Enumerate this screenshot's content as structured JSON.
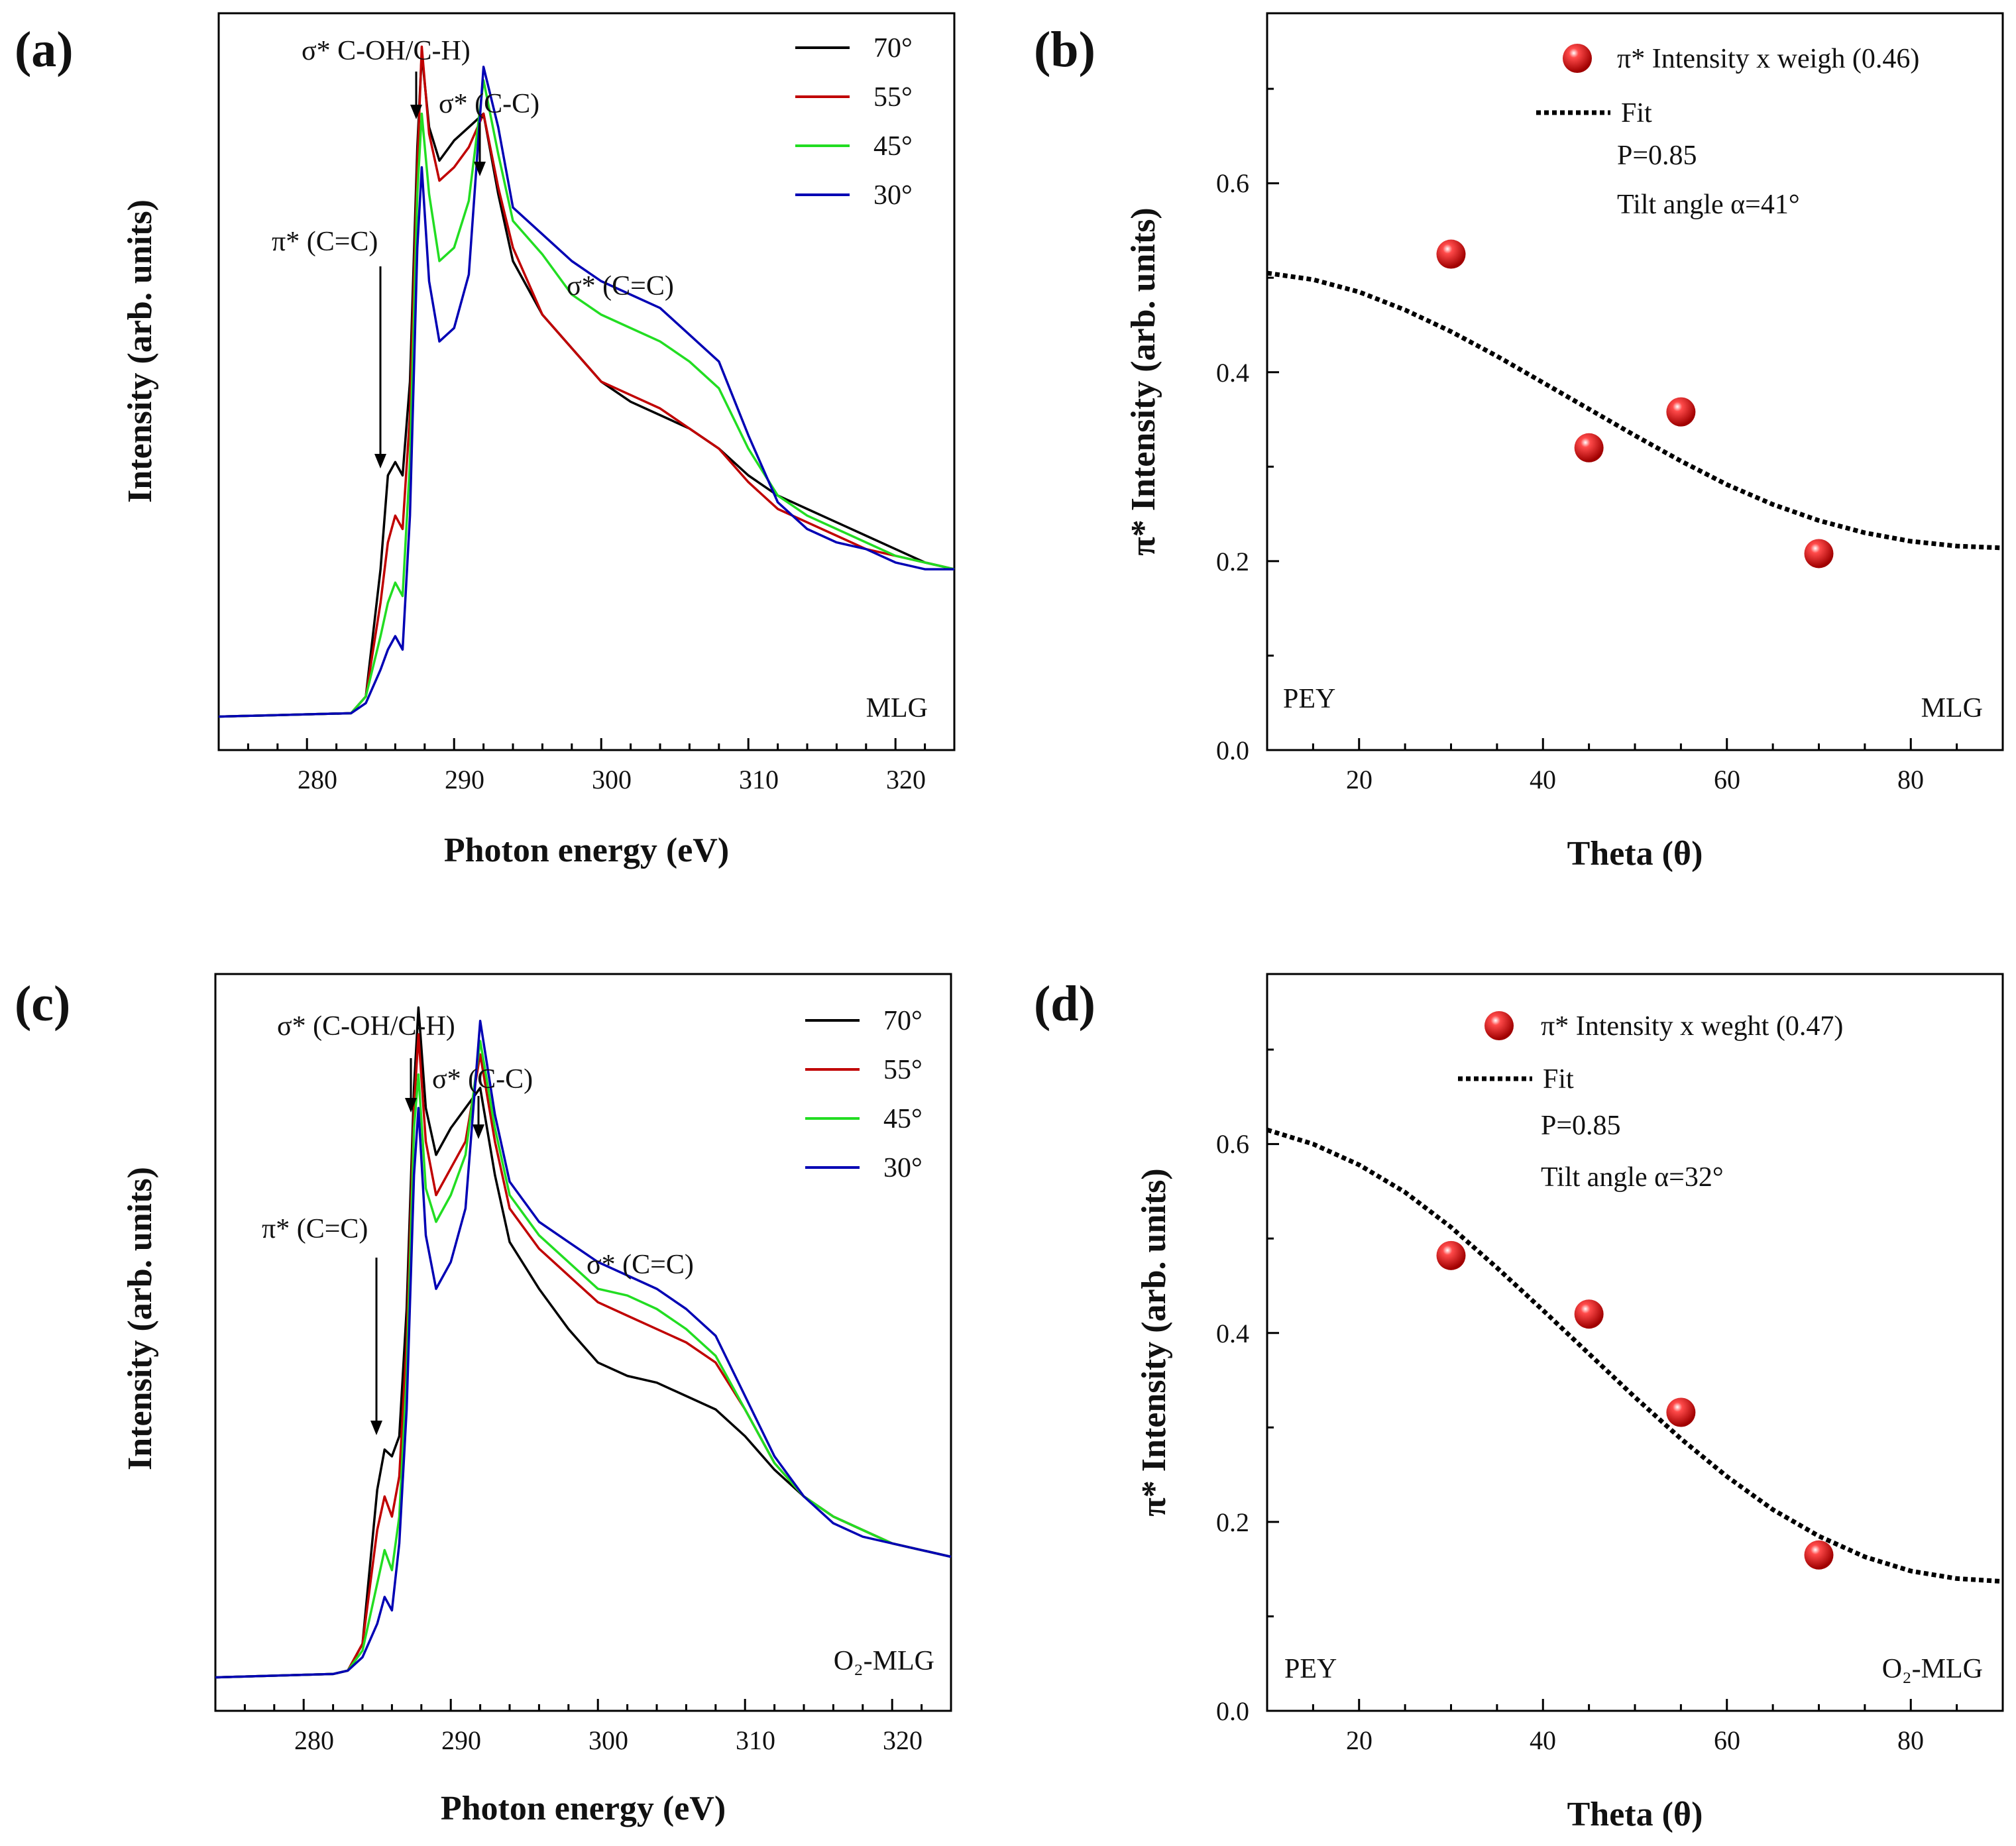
{
  "figure": {
    "colors": {
      "70": "#000000",
      "55": "#c00000",
      "45": "#22dd22",
      "30": "#0000b4",
      "point": "#e00000",
      "fit": "#000000"
    }
  },
  "chart_data": [
    {
      "panel": "(a)",
      "type": "line",
      "xlabel": "Photon energy (eV)",
      "ylabel": "Intensity (arb. units)",
      "xlim": [
        274,
        324
      ],
      "ylim": [
        -0.05,
        1.05
      ],
      "xticks": [
        280,
        290,
        300,
        310,
        320
      ],
      "yticks_shown": false,
      "legend": {
        "position": "top-right",
        "entries": [
          "70°",
          "55°",
          "45°",
          "30°"
        ]
      },
      "annotations": [
        "σ* C-OH/C-H)",
        "σ* (C-C)",
        "π* (C=C)",
        "σ* (C=C)"
      ],
      "sample_label": "MLG",
      "series": [
        {
          "name": "70°",
          "color_key": "70",
          "x": [
            274,
            283,
            284,
            285,
            285.5,
            286.0,
            286.5,
            287,
            287.5,
            287.8,
            288.3,
            289,
            290,
            291,
            292,
            293,
            294,
            296,
            298,
            300,
            302,
            304,
            306,
            308,
            310,
            312,
            314,
            316,
            318,
            320,
            322,
            324
          ],
          "y": [
            0,
            0.005,
            0.03,
            0.22,
            0.36,
            0.38,
            0.36,
            0.5,
            0.85,
            0.99,
            0.88,
            0.83,
            0.86,
            0.88,
            0.9,
            0.78,
            0.68,
            0.6,
            0.55,
            0.5,
            0.47,
            0.45,
            0.43,
            0.4,
            0.36,
            0.33,
            0.31,
            0.29,
            0.27,
            0.25,
            0.23,
            0.22
          ]
        },
        {
          "name": "55°",
          "color_key": "55",
          "x": [
            274,
            283,
            284,
            285,
            285.5,
            286.0,
            286.5,
            287,
            287.5,
            287.8,
            288.3,
            289,
            290,
            291,
            292,
            293,
            294,
            296,
            298,
            300,
            302,
            304,
            306,
            308,
            310,
            312,
            314,
            316,
            318,
            320,
            322,
            324
          ],
          "y": [
            0,
            0.005,
            0.03,
            0.17,
            0.26,
            0.3,
            0.28,
            0.45,
            0.82,
            1.0,
            0.87,
            0.8,
            0.82,
            0.85,
            0.9,
            0.79,
            0.7,
            0.6,
            0.55,
            0.5,
            0.48,
            0.46,
            0.43,
            0.4,
            0.35,
            0.31,
            0.29,
            0.27,
            0.25,
            0.24,
            0.23,
            0.22
          ]
        },
        {
          "name": "45°",
          "color_key": "45",
          "x": [
            274,
            283,
            284,
            285,
            285.5,
            286.0,
            286.5,
            287,
            287.5,
            287.8,
            288.3,
            289,
            290,
            291,
            292,
            293,
            294,
            296,
            298,
            300,
            302,
            304,
            306,
            308,
            310,
            312,
            314,
            316,
            318,
            320,
            322,
            324
          ],
          "y": [
            0,
            0.005,
            0.03,
            0.12,
            0.17,
            0.2,
            0.18,
            0.38,
            0.78,
            0.9,
            0.78,
            0.68,
            0.7,
            0.77,
            0.95,
            0.84,
            0.74,
            0.69,
            0.63,
            0.6,
            0.58,
            0.56,
            0.53,
            0.49,
            0.4,
            0.33,
            0.3,
            0.28,
            0.26,
            0.24,
            0.23,
            0.22
          ]
        },
        {
          "name": "30°",
          "color_key": "30",
          "x": [
            274,
            283,
            284,
            285,
            285.5,
            286.0,
            286.5,
            287,
            287.5,
            287.8,
            288.3,
            289,
            290,
            291,
            292,
            293,
            294,
            296,
            298,
            300,
            302,
            304,
            306,
            308,
            310,
            312,
            314,
            316,
            318,
            320,
            322,
            324
          ],
          "y": [
            0,
            0.005,
            0.02,
            0.07,
            0.1,
            0.12,
            0.1,
            0.3,
            0.7,
            0.82,
            0.65,
            0.56,
            0.58,
            0.66,
            0.97,
            0.88,
            0.76,
            0.72,
            0.68,
            0.65,
            0.63,
            0.61,
            0.57,
            0.53,
            0.42,
            0.32,
            0.28,
            0.26,
            0.25,
            0.23,
            0.22,
            0.22
          ]
        }
      ]
    },
    {
      "panel": "(b)",
      "type": "scatter",
      "xlabel": "Theta (θ)",
      "ylabel": "π* Intensity (arb. units)",
      "xlim": [
        10,
        90
      ],
      "ylim": [
        0.0,
        0.78
      ],
      "xticks": [
        20,
        40,
        60,
        80
      ],
      "yticks": [
        0.0,
        0.2,
        0.4,
        0.6
      ],
      "ytick_labels": [
        "0.0",
        "0.2",
        "0.4",
        "0.6"
      ],
      "legend": {
        "position": "top-right",
        "point_label": "π* Intensity x weigh (0.46)",
        "fit_label": "Fit"
      },
      "fit_params": [
        "P=0.85",
        "Tilt angle α=41°"
      ],
      "points": {
        "x": [
          30,
          45,
          55,
          70
        ],
        "y": [
          0.525,
          0.32,
          0.358,
          0.208
        ]
      },
      "fit": {
        "x": [
          10,
          15,
          20,
          25,
          30,
          35,
          40,
          45,
          50,
          55,
          60,
          65,
          70,
          75,
          80,
          85,
          90
        ],
        "y": [
          0.505,
          0.498,
          0.485,
          0.466,
          0.443,
          0.417,
          0.389,
          0.361,
          0.333,
          0.306,
          0.281,
          0.26,
          0.243,
          0.23,
          0.221,
          0.216,
          0.214
        ]
      },
      "corner_labels": {
        "left": "PEY",
        "right": "MLG"
      }
    },
    {
      "panel": "(c)",
      "type": "line",
      "xlabel": "Photon energy (eV)",
      "ylabel": "Intensity (arb. units)",
      "xlim": [
        274,
        324
      ],
      "ylim": [
        -0.05,
        1.05
      ],
      "xticks": [
        280,
        290,
        300,
        310,
        320
      ],
      "yticks_shown": false,
      "legend": {
        "position": "top-right",
        "entries": [
          "70°",
          "55°",
          "45°",
          "30°"
        ]
      },
      "annotations": [
        "σ* (C-OH/C-H)",
        "σ* (C-C)",
        "π* (C=C)",
        "σ* (C=C)"
      ],
      "sample_label": "O₂-MLG",
      "series": [
        {
          "name": "70°",
          "color_key": "70",
          "x": [
            274,
            282,
            283,
            284,
            285,
            285.5,
            286.0,
            286.5,
            287,
            287.5,
            287.8,
            288.3,
            289,
            290,
            291,
            292,
            293,
            294,
            296,
            298,
            300,
            302,
            304,
            306,
            308,
            310,
            312,
            314,
            316,
            318,
            320,
            322,
            324
          ],
          "y": [
            0,
            0.005,
            0.01,
            0.05,
            0.28,
            0.34,
            0.33,
            0.36,
            0.55,
            0.88,
            1.0,
            0.85,
            0.78,
            0.82,
            0.85,
            0.88,
            0.75,
            0.65,
            0.58,
            0.52,
            0.47,
            0.45,
            0.44,
            0.42,
            0.4,
            0.36,
            0.31,
            0.27,
            0.24,
            0.22,
            0.2,
            0.19,
            0.18
          ]
        },
        {
          "name": "55°",
          "color_key": "55",
          "x": [
            274,
            282,
            283,
            284,
            285,
            285.5,
            286.0,
            286.5,
            287,
            287.5,
            287.8,
            288.3,
            289,
            290,
            291,
            292,
            293,
            294,
            296,
            298,
            300,
            302,
            304,
            306,
            308,
            310,
            312,
            314,
            316,
            318,
            320,
            322,
            324
          ],
          "y": [
            0,
            0.005,
            0.01,
            0.05,
            0.22,
            0.27,
            0.24,
            0.3,
            0.5,
            0.85,
            0.96,
            0.8,
            0.72,
            0.76,
            0.8,
            0.93,
            0.8,
            0.7,
            0.64,
            0.6,
            0.56,
            0.54,
            0.52,
            0.5,
            0.47,
            0.4,
            0.32,
            0.27,
            0.24,
            0.22,
            0.2,
            0.19,
            0.18
          ]
        },
        {
          "name": "45°",
          "color_key": "45",
          "x": [
            274,
            282,
            283,
            284,
            285,
            285.5,
            286.0,
            286.5,
            287,
            287.5,
            287.8,
            288.3,
            289,
            290,
            291,
            292,
            293,
            294,
            296,
            298,
            300,
            302,
            304,
            306,
            308,
            310,
            312,
            314,
            316,
            318,
            320,
            322,
            324
          ],
          "y": [
            0,
            0.005,
            0.01,
            0.04,
            0.14,
            0.19,
            0.16,
            0.24,
            0.45,
            0.82,
            0.9,
            0.73,
            0.68,
            0.72,
            0.78,
            0.95,
            0.82,
            0.72,
            0.66,
            0.62,
            0.58,
            0.57,
            0.55,
            0.52,
            0.48,
            0.4,
            0.32,
            0.27,
            0.24,
            0.22,
            0.2,
            0.19,
            0.18
          ]
        },
        {
          "name": "30°",
          "color_key": "30",
          "x": [
            274,
            282,
            283,
            284,
            285,
            285.5,
            286.0,
            286.5,
            287,
            287.5,
            287.8,
            288.3,
            289,
            290,
            291,
            292,
            293,
            294,
            296,
            298,
            300,
            302,
            304,
            306,
            308,
            310,
            312,
            314,
            316,
            318,
            320,
            322,
            324
          ],
          "y": [
            0,
            0.005,
            0.01,
            0.03,
            0.08,
            0.12,
            0.1,
            0.2,
            0.4,
            0.75,
            0.85,
            0.66,
            0.58,
            0.62,
            0.7,
            0.98,
            0.84,
            0.74,
            0.68,
            0.65,
            0.62,
            0.6,
            0.58,
            0.55,
            0.51,
            0.42,
            0.33,
            0.27,
            0.23,
            0.21,
            0.2,
            0.19,
            0.18
          ]
        }
      ]
    },
    {
      "panel": "(d)",
      "type": "scatter",
      "xlabel": "Theta (θ)",
      "ylabel": "π* Intensity (arb. units)",
      "xlim": [
        10,
        90
      ],
      "ylim": [
        0.0,
        0.78
      ],
      "xticks": [
        20,
        40,
        60,
        80
      ],
      "yticks": [
        0.0,
        0.2,
        0.4,
        0.6
      ],
      "ytick_labels": [
        "0.0",
        "0.2",
        "0.4",
        "0.6"
      ],
      "legend": {
        "position": "top-right",
        "point_label": "π* Intensity x weght (0.47)",
        "fit_label": "Fit"
      },
      "fit_params": [
        "P=0.85",
        "Tilt angle α=32°"
      ],
      "points": {
        "x": [
          30,
          45,
          55,
          70
        ],
        "y": [
          0.482,
          0.42,
          0.316,
          0.165
        ]
      },
      "fit": {
        "x": [
          10,
          15,
          20,
          25,
          30,
          35,
          40,
          45,
          50,
          55,
          60,
          65,
          70,
          75,
          80,
          85,
          90
        ],
        "y": [
          0.615,
          0.6,
          0.578,
          0.549,
          0.512,
          0.469,
          0.424,
          0.378,
          0.332,
          0.288,
          0.248,
          0.213,
          0.185,
          0.163,
          0.148,
          0.14,
          0.137
        ]
      },
      "corner_labels": {
        "left": "PEY",
        "right": "O₂-MLG"
      }
    }
  ]
}
